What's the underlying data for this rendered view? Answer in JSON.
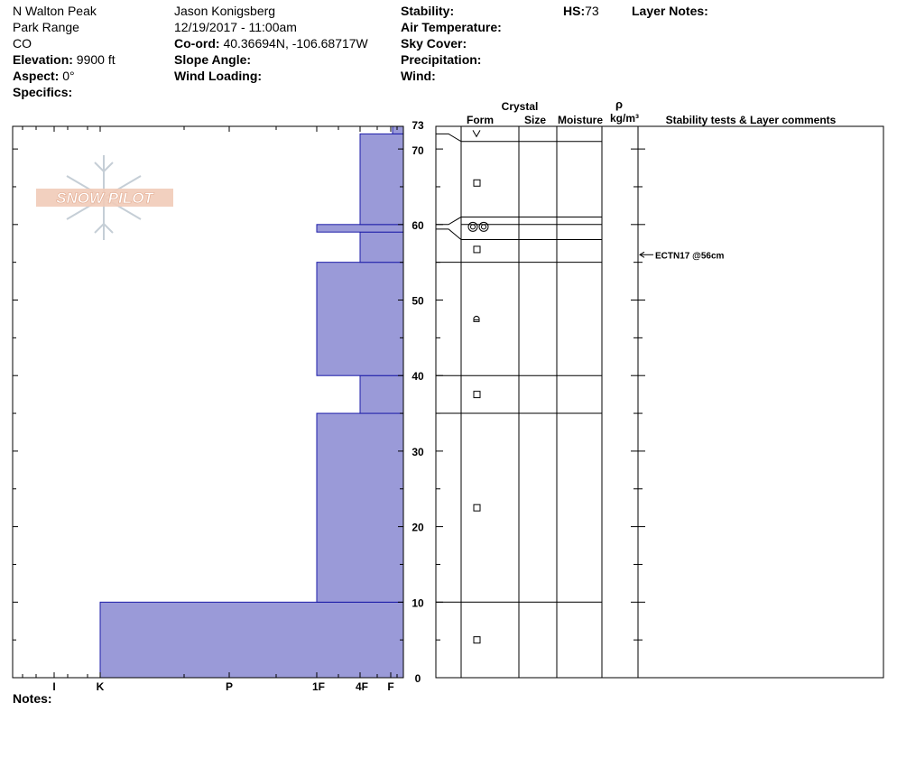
{
  "header": {
    "location": "N Walton Peak",
    "range": "Park Range",
    "state": "CO",
    "elevation_label": "Elevation:",
    "elevation_value": "9900 ft",
    "aspect_label": "Aspect:",
    "aspect_value": "0°",
    "specifics_label": "Specifics:",
    "observer": "Jason Konigsberg",
    "datetime": "12/19/2017 - 11:00am",
    "coord_label": "Co-ord:",
    "coord_value": "40.36694N, -106.68717W",
    "slope_label": "Slope Angle:",
    "wind_loading_label": "Wind Loading:",
    "stability_label": "Stability:",
    "air_temp_label": "Air Temperature:",
    "sky_cover_label": "Sky Cover:",
    "precip_label": "Precipitation:",
    "wind_label": "Wind:",
    "hs_label": "HS:",
    "hs_value": "73",
    "layer_notes_label": "Layer Notes:"
  },
  "notes_label": "Notes:",
  "logo_text": "SNOW PILOT",
  "columns": {
    "crystal": "Crystal",
    "form": "Form",
    "size": "Size",
    "moisture": "Moisture",
    "rho": "ρ",
    "density_unit": "kg/m³",
    "stability": "Stability tests & Layer comments"
  },
  "colors": {
    "hardness_fill": "#9a9ad8",
    "hardness_stroke": "#1c1ca8",
    "grid": "#000000"
  },
  "chart_data": {
    "type": "area",
    "y_axis": {
      "min": 0,
      "max": 73,
      "ticks": [
        0,
        10,
        20,
        30,
        40,
        50,
        60,
        70,
        73
      ],
      "unit": "cm"
    },
    "hardness_scale": [
      "I",
      "K",
      "P",
      "1F",
      "4F",
      "F"
    ],
    "hardness_profile": [
      {
        "bottom": 0,
        "top": 10,
        "hardness": "K"
      },
      {
        "bottom": 10,
        "top": 35,
        "hardness": "1F"
      },
      {
        "bottom": 35,
        "top": 40,
        "hardness": "4F"
      },
      {
        "bottom": 40,
        "top": 55,
        "hardness": "1F"
      },
      {
        "bottom": 55,
        "top": 59,
        "hardness": "4F"
      },
      {
        "bottom": 59,
        "top": 60,
        "hardness": "1F"
      },
      {
        "bottom": 60,
        "top": 72,
        "hardness": "4F"
      },
      {
        "bottom": 72,
        "top": 73,
        "hardness": "F+"
      }
    ],
    "layer_boundaries": [
      0,
      10,
      35,
      40,
      55,
      58,
      60,
      61,
      71,
      73
    ],
    "grain_forms": [
      {
        "height": 72,
        "symbol": "⋁"
      },
      {
        "height": 65.5,
        "symbol": "□"
      },
      {
        "height": 59.7,
        "symbol": "◎◎"
      },
      {
        "height": 56.7,
        "symbol": "□"
      },
      {
        "height": 47.5,
        "symbol": "⌂"
      },
      {
        "height": 37.5,
        "symbol": "□"
      },
      {
        "height": 22.5,
        "symbol": "□"
      },
      {
        "height": 5,
        "symbol": "□"
      }
    ],
    "stability_tests": [
      {
        "height": 56,
        "label": "ECTN17 @56cm"
      }
    ]
  }
}
